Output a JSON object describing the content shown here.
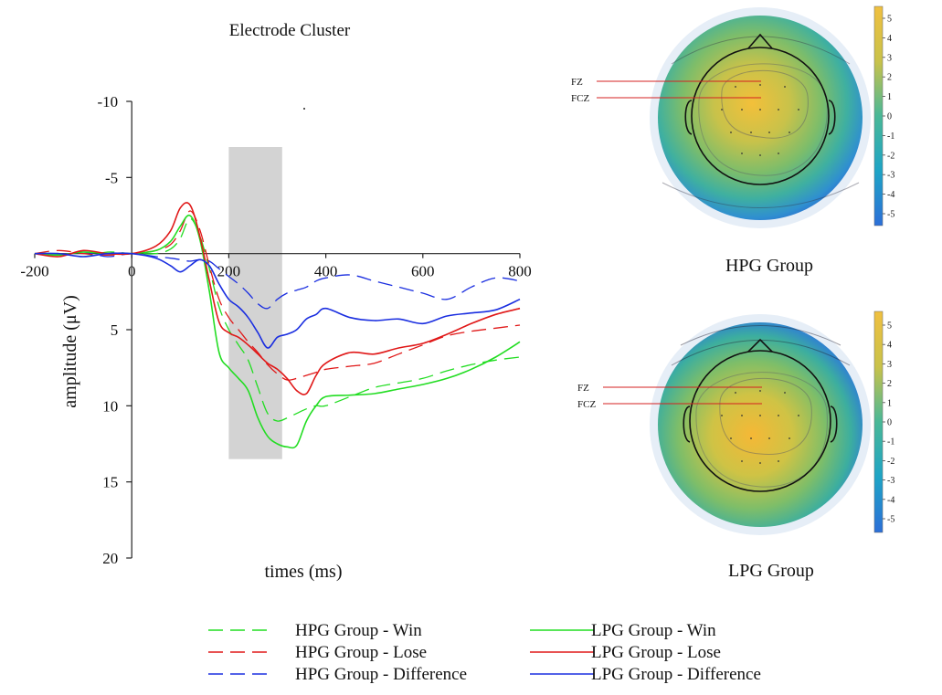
{
  "chart_data": [
    {
      "type": "line",
      "title": "Electrode Cluster",
      "xlabel": "times (ms)",
      "ylabel": "amplitude (μV)",
      "xlim": [
        -200,
        800
      ],
      "ylim": [
        -10,
        20
      ],
      "y_inverted": true,
      "x_ticks": [
        "-200",
        "0",
        "200",
        "400",
        "600",
        "800"
      ],
      "y_ticks": [
        "-10",
        "-5",
        "5",
        "10",
        "15",
        "20"
      ],
      "highlight_window_ms": [
        200,
        310
      ],
      "colors": {
        "win": "#22dd22",
        "lose": "#e01818",
        "difference": "#1a2ee0",
        "window": "#d3d3d3"
      },
      "series": [
        {
          "name": "HPG Group - Win",
          "color": "#22dd22",
          "dash": true,
          "x": [
            -200,
            -150,
            -100,
            -50,
            0,
            50,
            80,
            100,
            120,
            140,
            160,
            180,
            200,
            220,
            240,
            260,
            280,
            300,
            320,
            340,
            360,
            380,
            400,
            450,
            500,
            550,
            600,
            650,
            700,
            750,
            800
          ],
          "y": [
            0,
            0,
            0.2,
            -0.1,
            0,
            0,
            -0.3,
            -1,
            -2.3,
            -1.2,
            1,
            3.5,
            5,
            6,
            7,
            8.8,
            10.5,
            11,
            10.8,
            10.5,
            10.2,
            10,
            10,
            9.4,
            8.8,
            8.5,
            8.2,
            7.7,
            7.3,
            7,
            6.8
          ]
        },
        {
          "name": "HPG Group - Lose",
          "color": "#e01818",
          "dash": true,
          "x": [
            -200,
            -150,
            -100,
            -50,
            0,
            50,
            80,
            100,
            120,
            140,
            160,
            180,
            200,
            220,
            240,
            260,
            280,
            300,
            320,
            340,
            360,
            380,
            400,
            450,
            500,
            550,
            600,
            650,
            700,
            750,
            800
          ],
          "y": [
            0,
            -0.2,
            0,
            0.1,
            0,
            -0.2,
            -0.6,
            -1.5,
            -2.8,
            -1.6,
            0.8,
            3,
            4.2,
            5,
            5.8,
            6.5,
            7.3,
            7.9,
            8.3,
            8.2,
            8,
            7.8,
            7.6,
            7.4,
            7.2,
            6.6,
            6,
            5.4,
            5.1,
            4.9,
            4.7
          ]
        },
        {
          "name": "HPG Group - Difference",
          "color": "#1a2ee0",
          "dash": true,
          "x": [
            -200,
            -150,
            -100,
            -50,
            0,
            50,
            80,
            100,
            120,
            140,
            160,
            180,
            200,
            220,
            240,
            260,
            280,
            300,
            320,
            340,
            360,
            380,
            400,
            450,
            500,
            550,
            600,
            650,
            700,
            750,
            800
          ],
          "y": [
            0,
            0.1,
            -0.1,
            0.2,
            0,
            0.2,
            0.3,
            0.4,
            0.5,
            0.4,
            0.5,
            1,
            1.5,
            2,
            2.6,
            3.3,
            3.6,
            3,
            2.6,
            2.4,
            2.2,
            1.8,
            1.6,
            1.4,
            1.8,
            2.2,
            2.6,
            3,
            2.2,
            1.6,
            1.8
          ]
        },
        {
          "name": "LPG Group - Win",
          "color": "#22dd22",
          "dash": false,
          "x": [
            -200,
            -150,
            -100,
            -50,
            0,
            50,
            80,
            100,
            120,
            140,
            160,
            180,
            200,
            220,
            240,
            260,
            280,
            300,
            320,
            340,
            360,
            380,
            400,
            450,
            500,
            550,
            600,
            650,
            700,
            750,
            800
          ],
          "y": [
            0,
            0.1,
            -0.1,
            0,
            0,
            -0.2,
            -0.8,
            -1.8,
            -2.5,
            -1,
            2.5,
            6.5,
            7.5,
            8.2,
            9,
            10.8,
            12,
            12.5,
            12.7,
            12.6,
            11,
            10,
            9.4,
            9.3,
            9.2,
            8.9,
            8.6,
            8.2,
            7.6,
            6.8,
            5.8
          ]
        },
        {
          "name": "LPG Group - Lose",
          "color": "#e01818",
          "dash": false,
          "x": [
            -200,
            -150,
            -100,
            -50,
            0,
            50,
            80,
            100,
            120,
            140,
            160,
            180,
            200,
            220,
            240,
            260,
            280,
            300,
            320,
            340,
            360,
            380,
            400,
            450,
            500,
            550,
            600,
            650,
            700,
            750,
            800
          ],
          "y": [
            0,
            0.2,
            -0.2,
            0,
            0,
            -0.5,
            -1.5,
            -3,
            -3.2,
            -1.2,
            1.8,
            4.5,
            5.2,
            5.5,
            6,
            6.6,
            7.2,
            7.6,
            8.2,
            9,
            9.2,
            8,
            7.2,
            6.5,
            6.6,
            6.2,
            5.9,
            5.3,
            4.6,
            4,
            3.6
          ]
        },
        {
          "name": "LPG Group - Difference",
          "color": "#1a2ee0",
          "dash": false,
          "x": [
            -200,
            -150,
            -100,
            -50,
            0,
            50,
            80,
            100,
            120,
            140,
            160,
            180,
            200,
            220,
            240,
            260,
            280,
            300,
            320,
            340,
            360,
            380,
            400,
            450,
            500,
            550,
            600,
            650,
            700,
            750,
            800
          ],
          "y": [
            0,
            0,
            0.2,
            0,
            0,
            0.3,
            0.8,
            1.2,
            0.8,
            0.4,
            0.8,
            2,
            3,
            3.5,
            4.2,
            5.2,
            6.2,
            5.5,
            5.3,
            5,
            4.3,
            4,
            3.6,
            4.2,
            4.4,
            4.3,
            4.6,
            4.1,
            3.9,
            3.7,
            3
          ]
        }
      ]
    },
    {
      "type": "heatmap",
      "title": "HPG Group",
      "electrodes": [
        "FZ",
        "FCZ"
      ],
      "colorbar_ticks": [
        "5",
        "4",
        "3",
        "2",
        "1",
        "0",
        "-1",
        "-2",
        "-3",
        "-4",
        "-5"
      ]
    },
    {
      "type": "heatmap",
      "title": "LPG Group",
      "electrodes": [
        "FZ",
        "FCZ"
      ],
      "colorbar_ticks": [
        "5",
        "4",
        "3",
        "2",
        "1",
        "0",
        "-1",
        "-2",
        "-3",
        "-4",
        "-5"
      ]
    }
  ]
}
